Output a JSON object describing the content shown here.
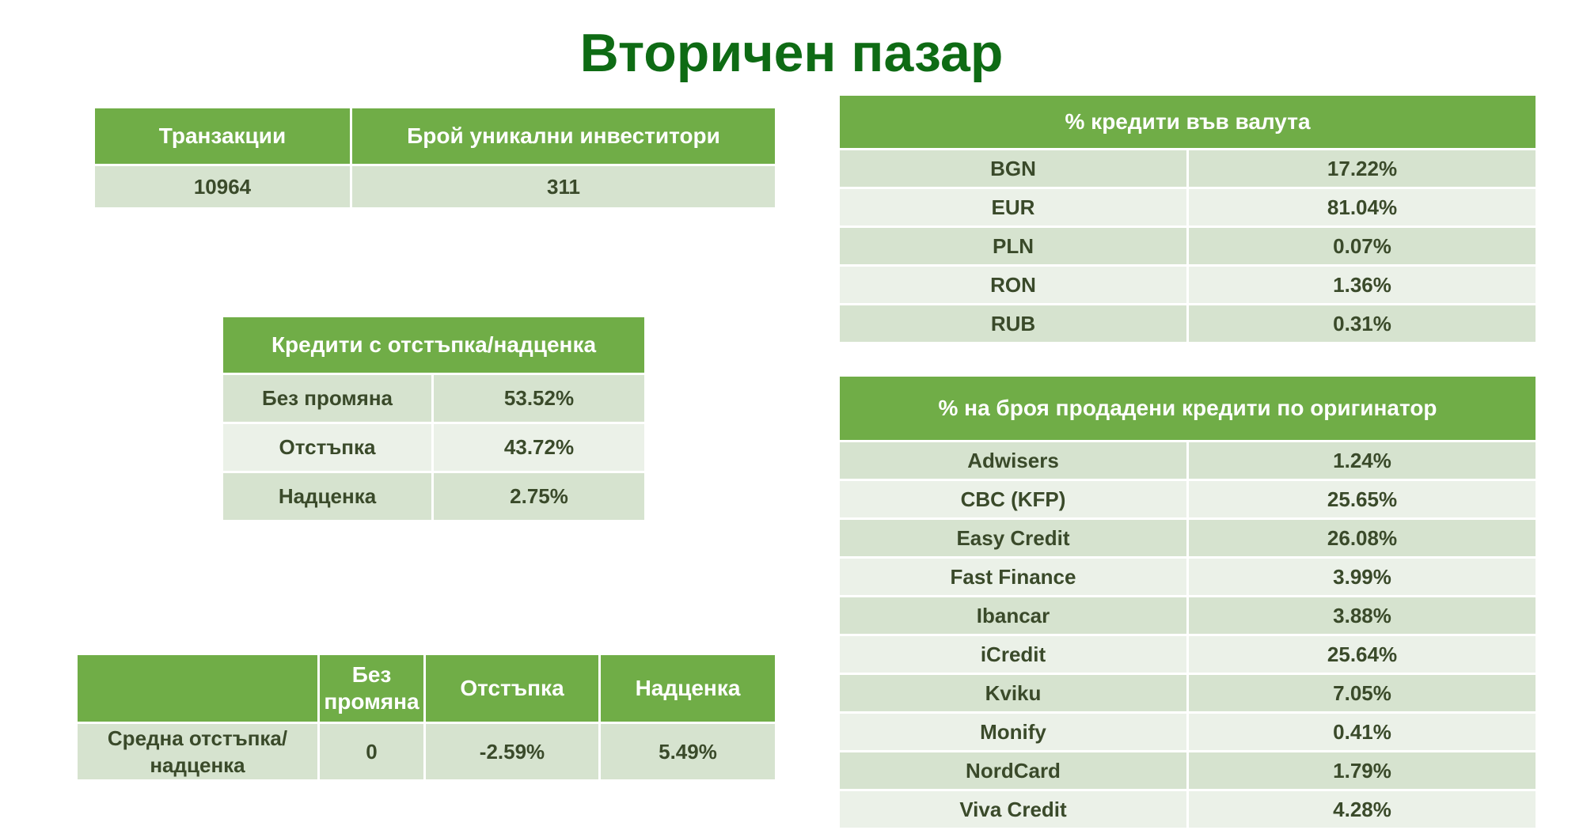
{
  "title": "Вторичен пазар",
  "transactions_table": {
    "headers": [
      "Транзакции",
      "Брой уникални инвеститори"
    ],
    "row": [
      "10964",
      "311"
    ]
  },
  "discount_table": {
    "header": "Кредити с отстъпка/надценка",
    "rows": [
      [
        "Без промяна",
        "53.52%"
      ],
      [
        "Отстъпка",
        "43.72%"
      ],
      [
        "Надценка",
        "2.75%"
      ]
    ]
  },
  "average_table": {
    "headers": [
      "",
      "Без промяна",
      "Отстъпка",
      "Надценка"
    ],
    "row": [
      "Средна отстъпка/надценка",
      "0",
      "-2.59%",
      "5.49%"
    ]
  },
  "currency_table": {
    "header": "% кредити във валута",
    "rows": [
      [
        "BGN",
        "17.22%"
      ],
      [
        "EUR",
        "81.04%"
      ],
      [
        "PLN",
        "0.07%"
      ],
      [
        "RON",
        "1.36%"
      ],
      [
        "RUB",
        "0.31%"
      ]
    ]
  },
  "originator_table": {
    "header": "% на броя продадени кредити по оригинатор",
    "rows": [
      [
        "Adwisers",
        "1.24%"
      ],
      [
        "CBC (KFP)",
        "25.65%"
      ],
      [
        "Easy Credit",
        "26.08%"
      ],
      [
        "Fast Finance",
        "3.99%"
      ],
      [
        "Ibancar",
        "3.88%"
      ],
      [
        "iCredit",
        "25.64%"
      ],
      [
        "Kviku",
        "7.05%"
      ],
      [
        "Monify",
        "0.41%"
      ],
      [
        "NordCard",
        "1.79%"
      ],
      [
        "Viva Credit",
        "4.28%"
      ]
    ]
  },
  "colors": {
    "title": "#0e6b14",
    "header_bg": "#70ad47",
    "row_dark": "#d6e3cf",
    "row_light": "#ebf1e8"
  }
}
